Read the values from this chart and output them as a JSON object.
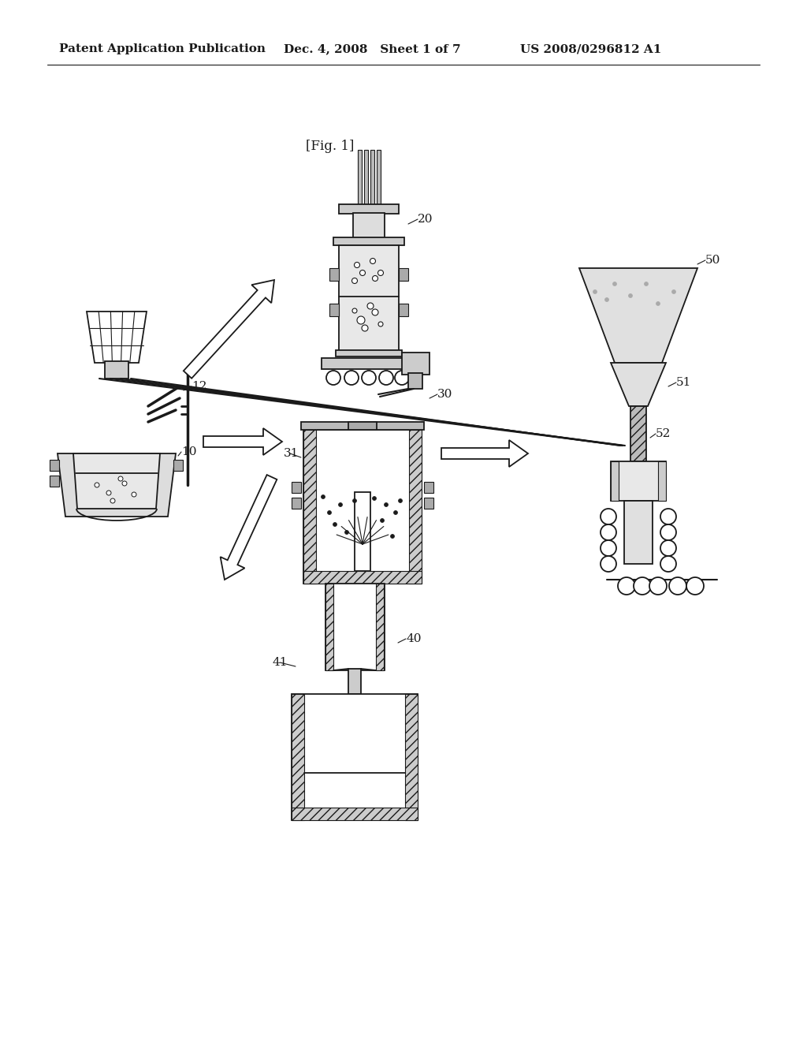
{
  "background_color": "#ffffff",
  "header_left": "Patent Application Publication",
  "header_mid": "Dec. 4, 2008   Sheet 1 of 7",
  "header_right": "US 2008/0296812 A1",
  "fig_label": "[Fig. 1]",
  "line_color": "#1a1a1a",
  "lw_main": 1.3,
  "lw_thin": 0.8,
  "fill_stipple": "#e8e8e8",
  "fill_gray": "#c8c8c8",
  "fill_dark": "#999999",
  "fill_white": "#ffffff"
}
